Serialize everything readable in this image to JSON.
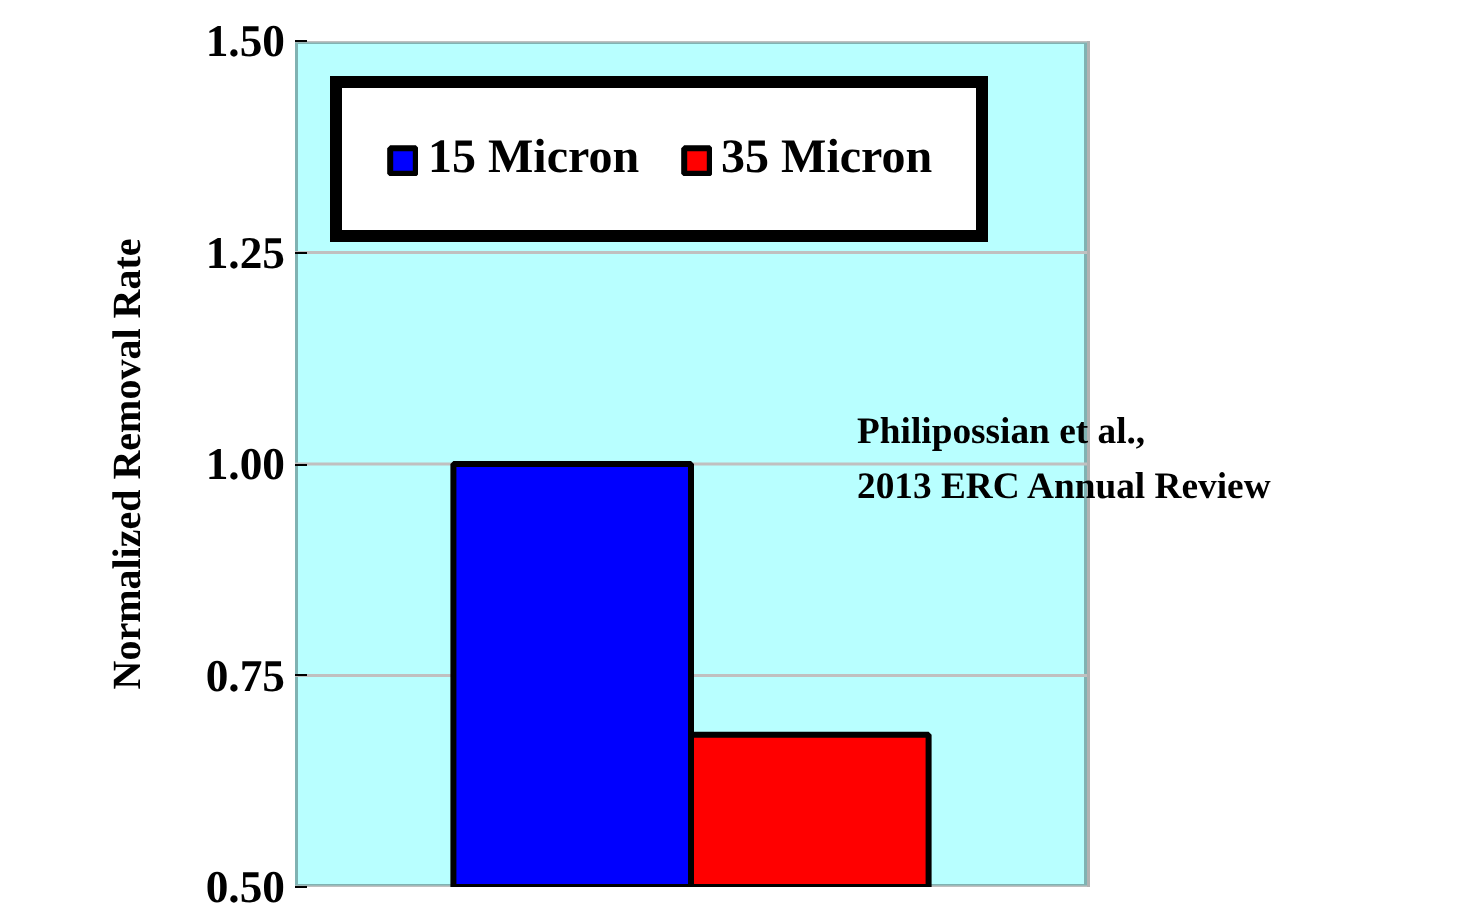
{
  "chart_data": {
    "type": "bar",
    "ylabel": "Normalized Removal Rate",
    "categories": [
      null
    ],
    "series": [
      {
        "name": "15 Micron",
        "color": "#0000ff",
        "values": [
          1.0
        ]
      },
      {
        "name": "35 Micron",
        "color": "#ff0000",
        "values": [
          0.68
        ]
      }
    ],
    "ylim": [
      0.5,
      1.5
    ],
    "yticks": [
      {
        "value": 0.5,
        "label": "0.50"
      },
      {
        "value": 0.75,
        "label": "0.75"
      },
      {
        "value": 1.0,
        "label": "1.00"
      },
      {
        "value": 1.25,
        "label": "1.25"
      },
      {
        "value": 1.5,
        "label": "1.50"
      }
    ],
    "grid": "y",
    "legend": "top",
    "tick_labels": "y",
    "annotations": [
      "Philipossian et al.,\n2013 ERC Annual Review"
    ]
  }
}
